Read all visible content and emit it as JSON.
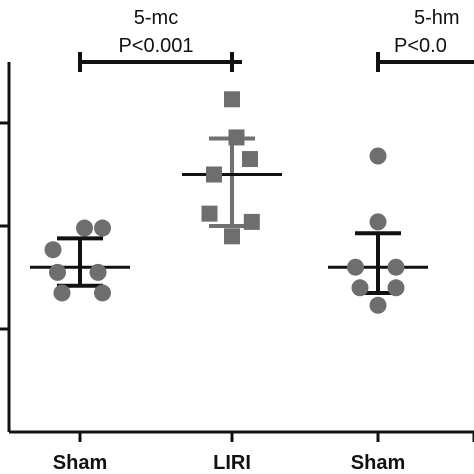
{
  "colors": {
    "points": "#6e6e6e",
    "error_bars_dark": "#111111",
    "error_bars_liri": "#707070",
    "axis": "#111111"
  },
  "chart_data": {
    "type": "scatter",
    "title": "",
    "xlabel": "",
    "ylabel": "",
    "categories": [
      "Sham",
      "LIRI",
      "Sham",
      ""
    ],
    "ylim": [
      0,
      4
    ],
    "y_ticks": [
      1,
      2,
      3
    ],
    "grid": false,
    "groups": [
      {
        "category_index": 0,
        "marker": "circle",
        "mean": 1.6,
        "sd": [
          1.42,
          1.88
        ],
        "points": [
          {
            "offset": -0.3,
            "y": 1.77
          },
          {
            "offset": 0.05,
            "y": 1.98
          },
          {
            "offset": 0.25,
            "y": 1.98
          },
          {
            "offset": -0.25,
            "y": 1.55
          },
          {
            "offset": 0.2,
            "y": 1.55
          },
          {
            "offset": -0.2,
            "y": 1.35
          },
          {
            "offset": 0.25,
            "y": 1.35
          }
        ]
      },
      {
        "category_index": 1,
        "marker": "square",
        "mean": 2.5,
        "sd": [
          2.0,
          2.85
        ],
        "points": [
          {
            "offset": 0.0,
            "y": 3.23
          },
          {
            "offset": 0.05,
            "y": 2.86
          },
          {
            "offset": -0.2,
            "y": 2.5
          },
          {
            "offset": 0.2,
            "y": 2.65
          },
          {
            "offset": -0.25,
            "y": 2.12
          },
          {
            "offset": 0.22,
            "y": 2.04
          },
          {
            "offset": 0.0,
            "y": 1.9
          }
        ]
      },
      {
        "category_index": 2,
        "marker": "circle",
        "mean": 1.6,
        "sd": [
          1.35,
          1.93
        ],
        "points": [
          {
            "offset": 0.0,
            "y": 2.68
          },
          {
            "offset": 0.0,
            "y": 2.04
          },
          {
            "offset": -0.25,
            "y": 1.6
          },
          {
            "offset": 0.2,
            "y": 1.6
          },
          {
            "offset": -0.2,
            "y": 1.4
          },
          {
            "offset": 0.2,
            "y": 1.4
          },
          {
            "offset": 0.0,
            "y": 1.23
          }
        ]
      }
    ],
    "annotations": [
      {
        "label": "5-mc",
        "p_value": "P<0.001",
        "from_category": 0,
        "to_category": 1
      },
      {
        "label": "5-hm",
        "p_value": "P<0.0",
        "from_category": 2,
        "to_category": 3
      }
    ]
  }
}
